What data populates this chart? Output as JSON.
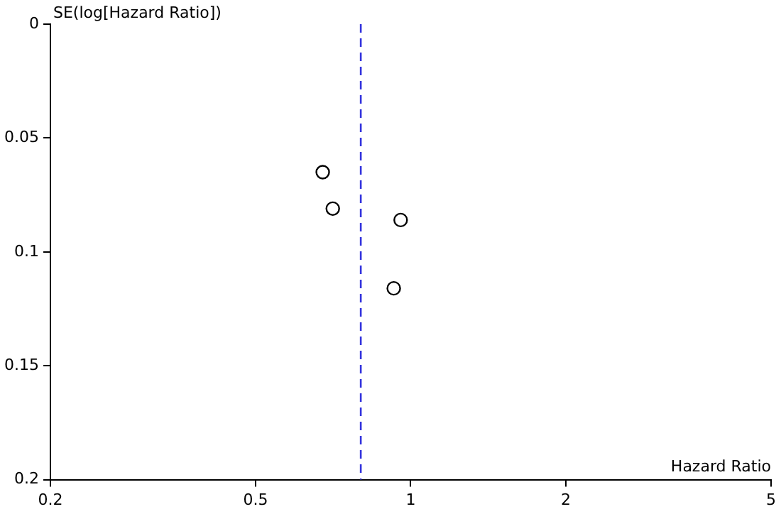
{
  "chart_data": {
    "type": "scatter",
    "xlabel": "Hazard Ratio",
    "ylabel": "SE(log[Hazard Ratio])",
    "log": "x",
    "xlim": [
      0.2,
      5
    ],
    "xticks": [
      0.2,
      0.5,
      1,
      2,
      5
    ],
    "ylim": [
      0.2,
      0
    ],
    "yticks": [
      0,
      0.05,
      0.1,
      0.15,
      0.2
    ],
    "grid": false,
    "legend": false,
    "marker": "circle",
    "series": [
      {
        "color": "#000000",
        "x": [
          0.675,
          0.706,
          0.956,
          0.927
        ],
        "values": [
          0.065,
          0.081,
          0.086,
          0.116
        ]
      }
    ],
    "ref_lines": [
      {
        "axis": "x",
        "value": 0.8,
        "color": "#3333dd",
        "line_style": "dashed"
      }
    ]
  }
}
